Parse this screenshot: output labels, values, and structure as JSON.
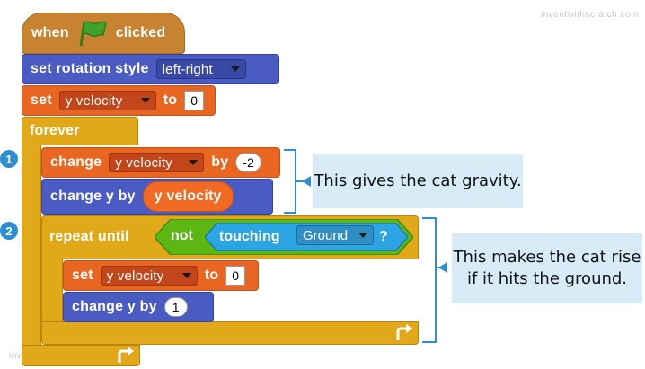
{
  "watermark": "inventwithscratch.com",
  "script": {
    "hat": {
      "when": "when",
      "clicked": "clicked",
      "icon": "green-flag-icon"
    },
    "rotation": {
      "label": "set rotation style",
      "value": "left-right"
    },
    "set_velocity": {
      "set": "set",
      "variable": "y velocity",
      "to": "to",
      "value": "0"
    },
    "forever": {
      "label": "forever"
    },
    "change_velocity": {
      "change": "change",
      "variable": "y velocity",
      "by": "by",
      "value": "-2"
    },
    "change_y": {
      "label": "change y by",
      "reporter": "y velocity"
    },
    "repeat_until": {
      "label": "repeat until",
      "not": "not",
      "touching": "touching",
      "target": "Ground",
      "question": "?"
    },
    "inner_set": {
      "set": "set",
      "variable": "y velocity",
      "to": "to",
      "value": "0"
    },
    "inner_change_y": {
      "label": "change y by",
      "value": "1"
    }
  },
  "annotations": {
    "badge1": "1",
    "badge2": "2",
    "gravity": "This gives the cat gravity.",
    "rise_line1": "This makes the cat rise",
    "rise_line2": "if it hits the ground."
  },
  "colors": {
    "events": "#c88330",
    "motion": "#4a5bc4",
    "data": "#e8661f",
    "control": "#e1a91a",
    "operators": "#5cb712",
    "sensing": "#2ca5e2",
    "callout": "#d8ecf8"
  }
}
